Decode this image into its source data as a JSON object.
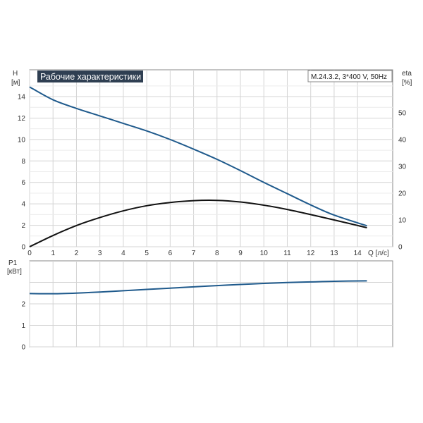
{
  "colors": {
    "head_curve": "#1f5a8c",
    "eta_curve": "#111111",
    "power_curve": "#1f5a8c",
    "title_bg": "#2f3f52",
    "grid": "#d4d4d4",
    "frame": "#8a8a8a"
  },
  "chart_data": [
    {
      "type": "line",
      "title": "Рабочие характеристики",
      "subtitle": "M.24.3.2, 3*400 V, 50Hz",
      "xlabel": "Q [л/с]",
      "x_unit_label": "Q [л/с]",
      "ylabel_left": "H",
      "ylabel_left_unit": "[м]",
      "ylabel_right": "eta",
      "ylabel_right_unit": "[%]",
      "xlim": [
        0,
        15.5
      ],
      "ylim_left": [
        0,
        16.5
      ],
      "ylim_right": [
        0,
        66
      ],
      "x_ticks": [
        "0",
        "1",
        "2",
        "3",
        "4",
        "5",
        "6",
        "7",
        "8",
        "9",
        "10",
        "11",
        "12",
        "13",
        "14"
      ],
      "y_ticks_left": [
        "0",
        "2",
        "4",
        "6",
        "8",
        "10",
        "12",
        "14"
      ],
      "y_ticks_right": [
        "0",
        "10",
        "20",
        "30",
        "40",
        "50"
      ],
      "grid": true,
      "series": [
        {
          "name": "H",
          "axis": "left",
          "x": [
            0,
            1,
            2,
            3,
            4,
            5,
            6,
            7,
            8,
            9,
            10,
            11,
            12,
            13,
            14.4
          ],
          "y": [
            14.9,
            13.7,
            12.9,
            12.2,
            11.5,
            10.8,
            10.0,
            9.1,
            8.15,
            7.1,
            6.0,
            4.95,
            3.9,
            2.95,
            1.95
          ]
        },
        {
          "name": "eta",
          "axis": "right",
          "x": [
            0,
            1,
            2,
            3,
            4,
            5,
            6,
            7,
            8,
            9,
            10,
            11,
            12,
            13,
            14.4
          ],
          "y": [
            0,
            4.2,
            7.9,
            10.9,
            13.4,
            15.3,
            16.5,
            17.2,
            17.3,
            16.7,
            15.5,
            13.9,
            12.0,
            10.0,
            7.1
          ]
        }
      ]
    },
    {
      "type": "line",
      "ylabel": "P1",
      "ylabel_unit": "[кВт]",
      "xlim": [
        0,
        15.5
      ],
      "ylim": [
        0,
        4
      ],
      "y_ticks": [
        "0",
        "1",
        "2"
      ],
      "grid": true,
      "series": [
        {
          "name": "P1",
          "x": [
            0,
            1,
            2,
            3,
            4,
            5,
            6,
            7,
            8,
            9,
            10,
            11,
            12,
            13,
            14.4
          ],
          "y": [
            2.48,
            2.47,
            2.5,
            2.55,
            2.61,
            2.67,
            2.73,
            2.79,
            2.85,
            2.9,
            2.95,
            2.99,
            3.02,
            3.05,
            3.07
          ]
        }
      ]
    }
  ]
}
